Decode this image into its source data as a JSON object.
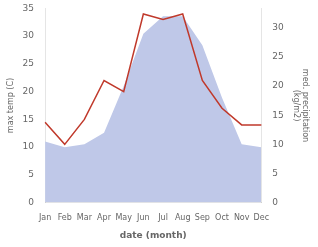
{
  "chart_data": {
    "type": "line",
    "categories": [
      "Jan",
      "Feb",
      "Mar",
      "Apr",
      "May",
      "Jun",
      "Jul",
      "Aug",
      "Sep",
      "Oct",
      "Nov",
      "Dec"
    ],
    "series": [
      {
        "type": "line",
        "color": "#c0392b",
        "axis": "y",
        "values": [
          14.5,
          10.5,
          15.0,
          22.0,
          20.0,
          34.0,
          33.0,
          34.0,
          22.0,
          17.0,
          14.0,
          14.0
        ]
      },
      {
        "type": "area",
        "color": "#bfc8e8",
        "axis": "y2",
        "values": [
          10.5,
          9.5,
          10.0,
          12.0,
          20.0,
          29.0,
          32.0,
          32.0,
          27.0,
          18.0,
          10.0,
          9.5
        ]
      }
    ],
    "xlabel": "date (month)",
    "ylabel": "max temp (C)",
    "y2label": "med. precipitation\n(kg/m2)",
    "ylim": [
      0,
      35
    ],
    "yticks": [
      0,
      5,
      10,
      15,
      20,
      25,
      30,
      35
    ],
    "y2lim": [
      0,
      33.33
    ],
    "y2ticks": [
      0,
      5,
      10,
      15,
      20,
      25,
      30
    ],
    "grid": false
  }
}
